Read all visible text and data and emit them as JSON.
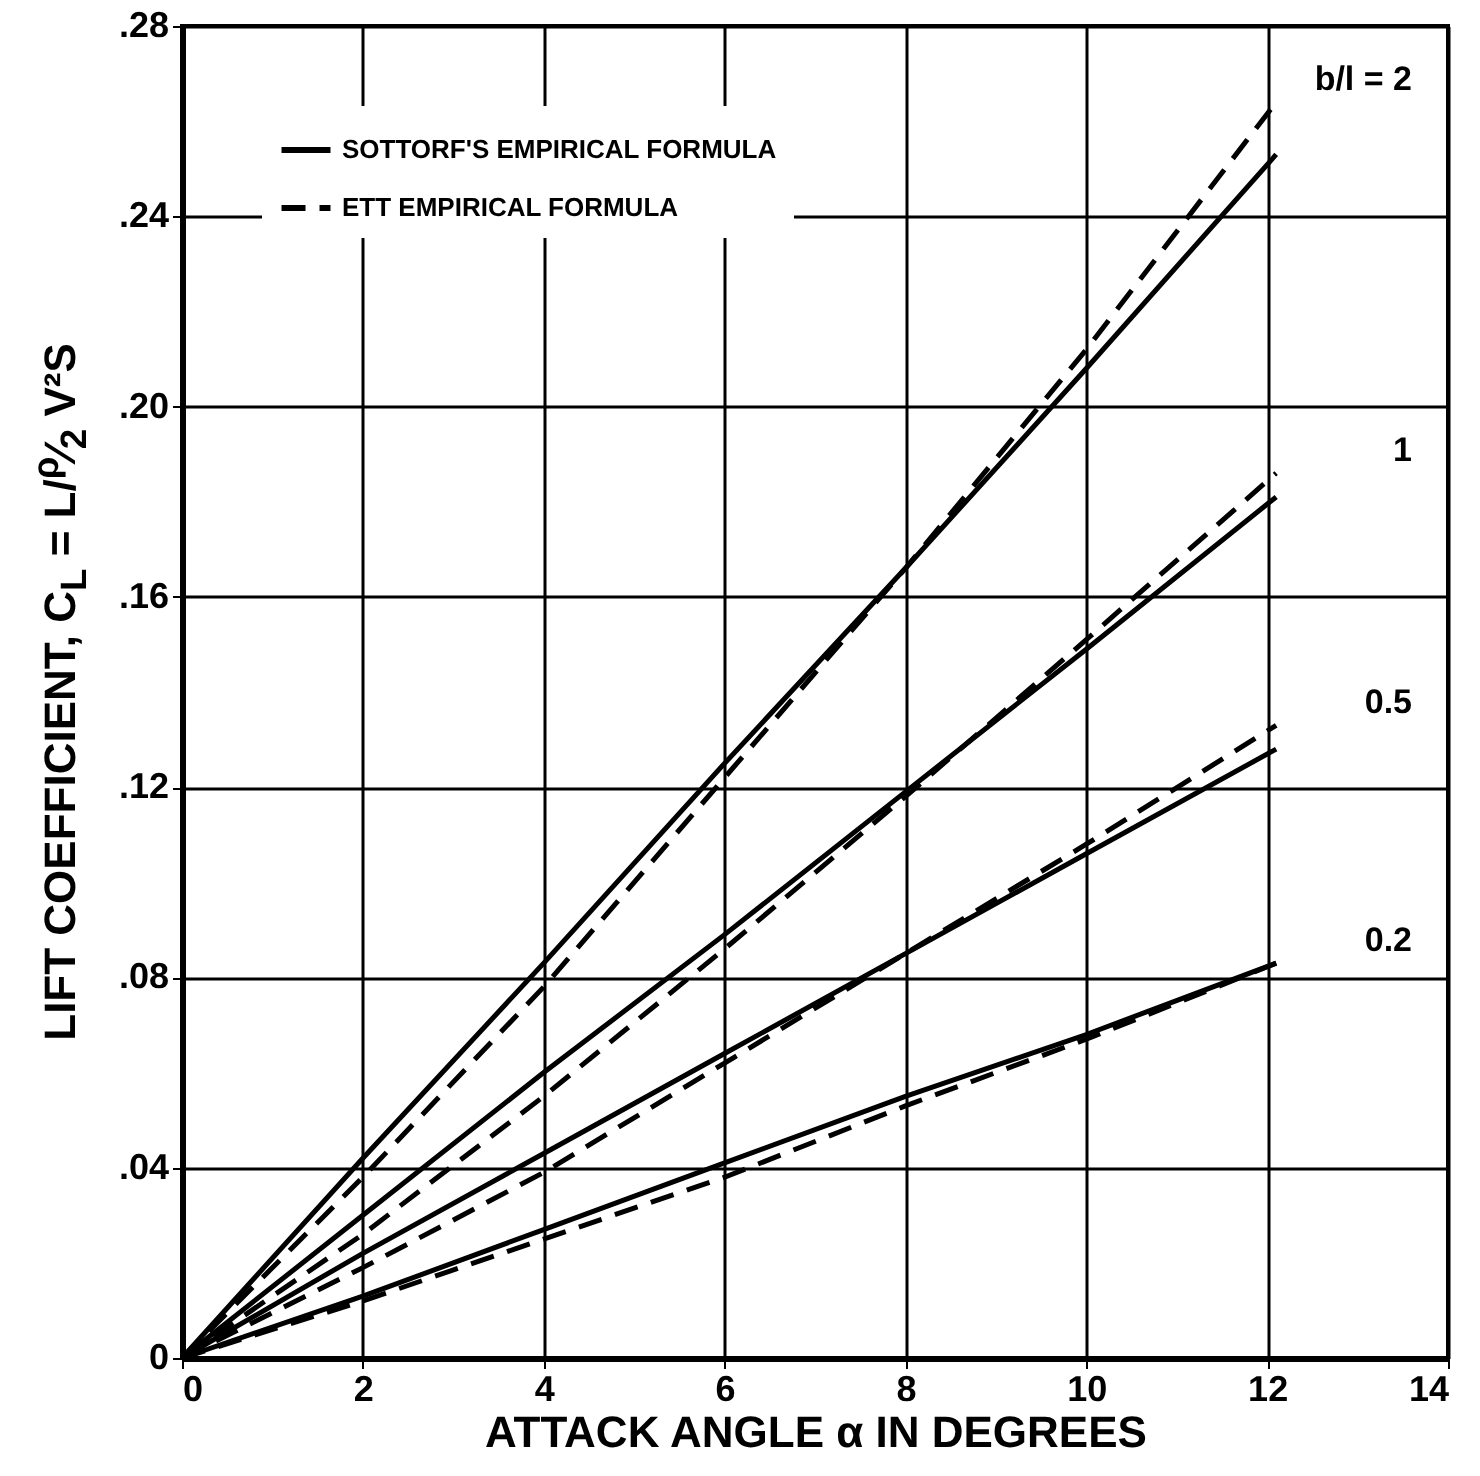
{
  "chart_data": {
    "type": "line",
    "xlabel": "ATTACK ANGLE α IN DEGREES",
    "ylabel": "LIFT COEFFICIENT, C$_{L}$ = L/$^{ρ}$⁄$_{2}$ V²S",
    "x": [
      0,
      2,
      4,
      6,
      8,
      10,
      12.1
    ],
    "series": [
      {
        "name": "SOTTORF'S EMPIRICAL FORMULA",
        "color": "#000000",
        "line_style": "solid",
        "values": [
          0,
          0.042,
          0.083,
          0.125,
          0.166,
          0.208,
          0.253
        ]
      },
      {
        "name": "ETT EMPIRICAL FORMULA",
        "color": "#000000",
        "line_style": "dashed",
        "values": [
          0,
          0.038,
          0.078,
          0.122,
          0.166,
          0.212,
          0.264
        ]
      },
      {
        "color": "#000000",
        "line_style": "solid",
        "values": [
          0,
          0.03,
          0.06,
          0.089,
          0.119,
          0.149,
          0.181
        ]
      },
      {
        "color": "#000000",
        "line_style": "dashed",
        "values": [
          0,
          0.026,
          0.055,
          0.086,
          0.118,
          0.151,
          0.186
        ]
      },
      {
        "color": "#000000",
        "line_style": "solid",
        "values": [
          0,
          0.022,
          0.043,
          0.064,
          0.085,
          0.106,
          0.128
        ]
      },
      {
        "color": "#000000",
        "line_style": "dashed",
        "values": [
          0,
          0.019,
          0.039,
          0.062,
          0.085,
          0.108,
          0.133
        ]
      },
      {
        "color": "#000000",
        "line_style": "solid",
        "values": [
          0,
          0.013,
          0.027,
          0.041,
          0.055,
          0.068,
          0.083
        ]
      },
      {
        "color": "#000000",
        "line_style": "dashed",
        "values": [
          0,
          0.012,
          0.025,
          0.038,
          0.053,
          0.067,
          0.083
        ]
      }
    ],
    "xlim": [
      0,
      14
    ],
    "xticks": [
      0,
      2,
      4,
      6,
      8,
      10,
      12,
      14
    ],
    "ylim": [
      0,
      0.28
    ],
    "yticks": [
      {
        "value": 0,
        "label": "0"
      },
      {
        "value": 0.04,
        "label": ".04"
      },
      {
        "value": 0.08,
        "label": ".08"
      },
      {
        "value": 0.12,
        "label": ".12"
      },
      {
        "value": 0.16,
        "label": ".16"
      },
      {
        "value": 0.2,
        "label": ".20"
      },
      {
        "value": 0.24,
        "label": ".24"
      },
      {
        "value": 0.28,
        "label": ".28"
      }
    ],
    "annotations": [
      "b/l = 2",
      "1",
      "0.5",
      "0.2"
    ],
    "grid": true,
    "legend": "top left",
    "marker": "none"
  }
}
